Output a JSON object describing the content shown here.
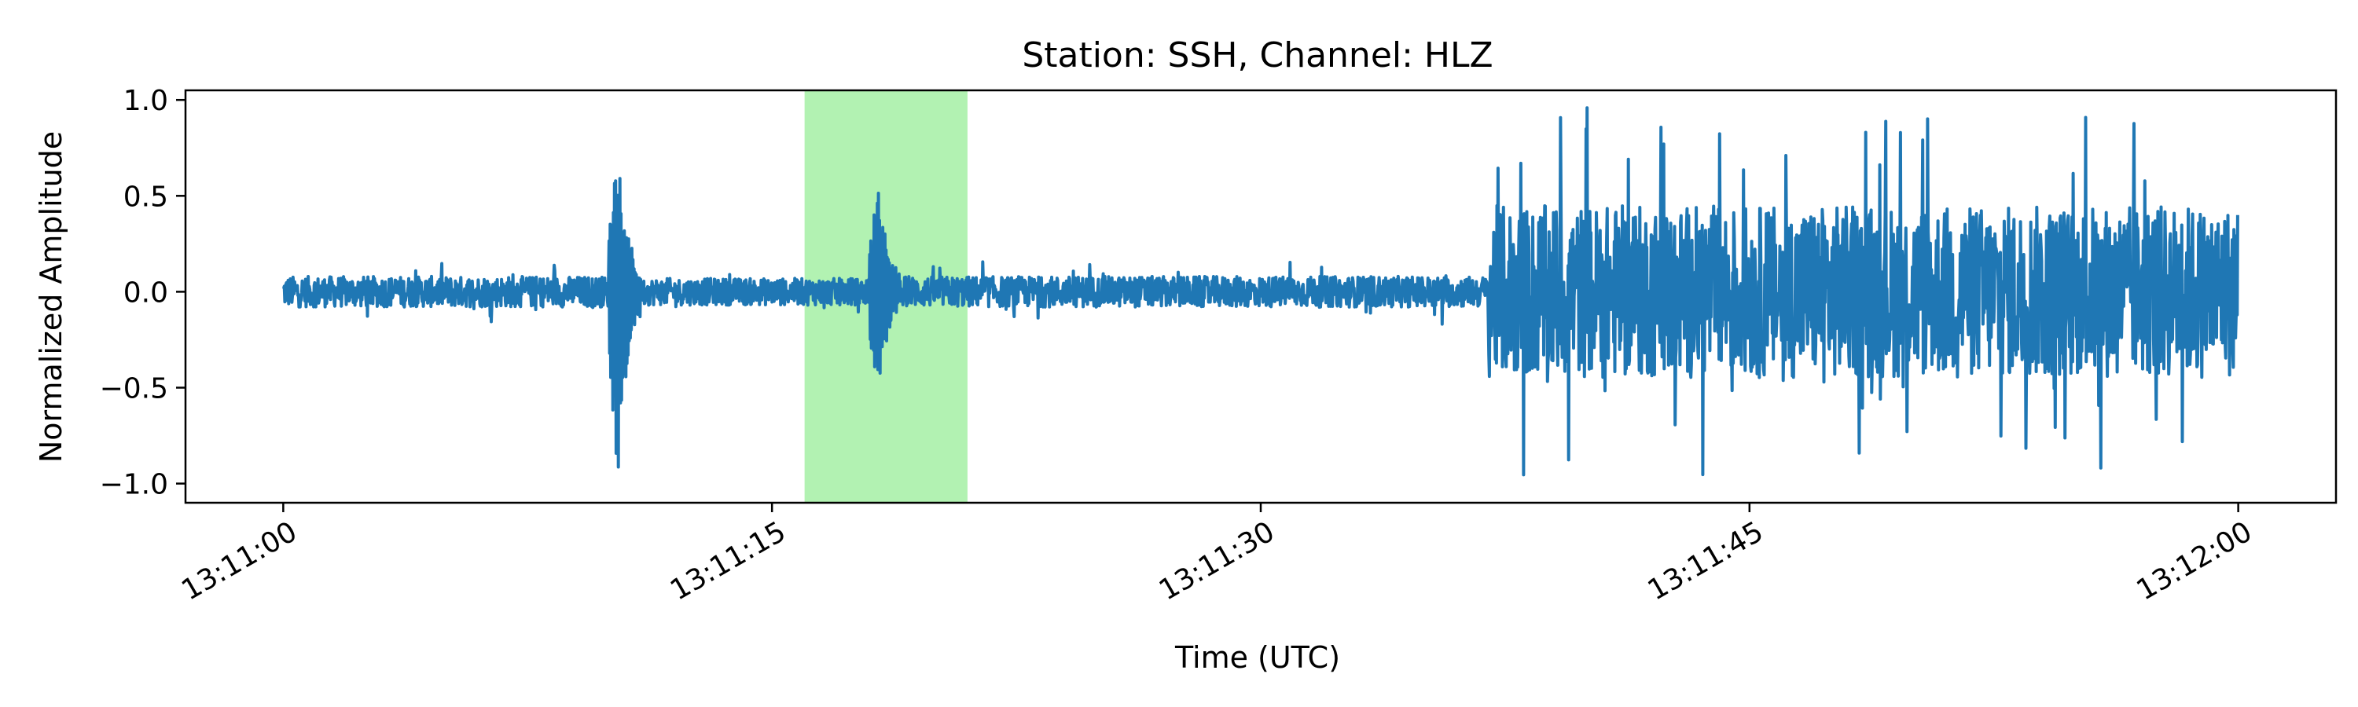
{
  "chart_data": {
    "type": "line",
    "title": "Station: SSH, Channel: HLZ",
    "xlabel": "Time (UTC)",
    "ylabel": "Normalized Amplitude",
    "x_range_seconds_after": [
      "13:11:00",
      "13:12:00"
    ],
    "xlim": [
      "13:10:57",
      "13:12:03"
    ],
    "ylim": [
      -1.1,
      1.05
    ],
    "x_ticks": [
      "13:11:00",
      "13:11:15",
      "13:11:30",
      "13:11:45",
      "13:12:00"
    ],
    "y_ticks": [
      "1.0",
      "0.5",
      "0.0",
      "−0.5",
      "−1.0"
    ],
    "y_tick_values": [
      1.0,
      0.5,
      0.0,
      -0.5,
      -1.0
    ],
    "grid": false,
    "highlight_window": {
      "start": "13:11:16",
      "end": "13:11:21",
      "color": "#b2f2b2"
    },
    "series": [
      {
        "color": "#1f77b4",
        "segments": [
          {
            "start": "13:11:00",
            "end": "13:11:10",
            "noise_amplitude": 0.08,
            "peak": 0.16
          },
          {
            "start": "13:11:10",
            "end": "13:11:11",
            "event": "spike",
            "max": 0.8,
            "min": -1.0
          },
          {
            "start": "13:11:11",
            "end": "13:11:18",
            "noise_amplitude": 0.07,
            "peak": 0.12
          },
          {
            "start": "13:11:18",
            "end": "13:11:19",
            "event": "spike",
            "max": 0.62,
            "min": -0.53
          },
          {
            "start": "13:11:19",
            "end": "13:11:37",
            "noise_amplitude": 0.08,
            "peak": 0.17
          },
          {
            "start": "13:11:37",
            "end": "13:12:00",
            "noise_amplitude": 0.45,
            "peak": 0.96,
            "min": -0.97
          }
        ]
      }
    ]
  }
}
